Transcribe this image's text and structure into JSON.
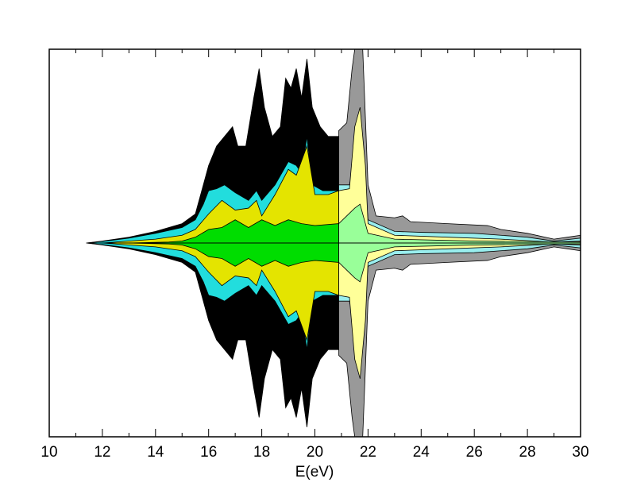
{
  "chart_data": {
    "type": "mirrored-area",
    "xlabel": "E(eV)",
    "xlim": [
      10,
      30
    ],
    "ylim": [
      -1,
      1
    ],
    "xticks": [
      10,
      12,
      14,
      16,
      18,
      20,
      22,
      24,
      26,
      28,
      30
    ],
    "xminorticks": [
      11,
      13,
      15,
      17,
      19,
      21,
      23,
      25,
      27,
      29
    ],
    "series": [
      {
        "color": "#000000",
        "x": [
          11.4,
          12,
          13,
          14,
          15,
          15.5,
          15.8,
          16,
          16.3,
          16.6,
          16.9,
          17.1,
          17.4,
          17.7,
          17.9,
          18.1,
          18.4,
          18.7,
          18.9,
          19.1,
          19.3,
          19.5,
          19.7,
          19.9,
          20.2,
          20.5,
          20.9
        ],
        "values": [
          0,
          0.01,
          0.03,
          0.06,
          0.1,
          0.15,
          0.3,
          0.4,
          0.5,
          0.55,
          0.6,
          0.5,
          0.5,
          0.75,
          0.9,
          0.7,
          0.55,
          0.6,
          0.85,
          0.8,
          0.9,
          0.75,
          0.95,
          0.7,
          0.6,
          0.55,
          0.55
        ]
      },
      {
        "color": "#999999",
        "x": [
          20.9,
          21.2,
          21.4,
          21.5,
          21.8,
          22,
          22.3,
          23,
          23.3,
          23.6,
          25,
          26.5,
          27,
          28,
          29,
          29.5,
          30
        ],
        "values": [
          0.58,
          0.62,
          0.9,
          1.0,
          1.0,
          0.3,
          0.14,
          0.13,
          0.14,
          0.11,
          0.1,
          0.09,
          0.07,
          0.05,
          0.02,
          0.03,
          0.04
        ]
      },
      {
        "color": "#22dddd",
        "x": [
          11.4,
          12,
          13,
          14,
          15,
          15.5,
          15.8,
          16,
          16.3,
          16.6,
          17,
          17.5,
          17.8,
          18,
          18.5,
          19,
          19.3,
          19.5,
          19.7,
          19.9,
          20.3,
          20.9
        ],
        "values": [
          0,
          0.008,
          0.025,
          0.05,
          0.08,
          0.12,
          0.2,
          0.27,
          0.28,
          0.3,
          0.26,
          0.22,
          0.27,
          0.22,
          0.3,
          0.42,
          0.4,
          0.36,
          0.55,
          0.3,
          0.27,
          0.27
        ]
      },
      {
        "color": "#99eeee",
        "x": [
          20.9,
          21.3,
          21.6,
          21.8,
          22,
          23,
          24,
          26,
          27,
          28,
          29,
          30
        ],
        "values": [
          0.3,
          0.3,
          0.5,
          0.45,
          0.12,
          0.06,
          0.055,
          0.05,
          0.04,
          0.03,
          0.01,
          0.025
        ]
      },
      {
        "color": "#e4e400",
        "x": [
          12,
          14,
          15,
          15.5,
          16,
          16.5,
          17,
          17.5,
          17.8,
          18,
          18.5,
          19,
          19.3,
          19.7,
          20,
          20.5,
          20.9
        ],
        "values": [
          0,
          0.02,
          0.04,
          0.07,
          0.15,
          0.22,
          0.17,
          0.18,
          0.22,
          0.14,
          0.25,
          0.38,
          0.35,
          0.5,
          0.25,
          0.25,
          0.27
        ]
      },
      {
        "color": "#ffff99",
        "x": [
          20.9,
          21.3,
          21.5,
          21.7,
          21.9,
          22,
          23,
          25,
          27,
          29,
          30
        ],
        "values": [
          0.27,
          0.28,
          0.6,
          0.7,
          0.4,
          0.1,
          0.04,
          0.03,
          0.02,
          0.005,
          0.01
        ]
      },
      {
        "color": "#00dd00",
        "x": [
          13,
          14.5,
          15,
          15.5,
          16,
          16.5,
          17,
          17.5,
          18,
          18.5,
          19,
          19.5,
          20,
          20.9
        ],
        "values": [
          0,
          0.005,
          0.01,
          0.03,
          0.07,
          0.08,
          0.12,
          0.08,
          0.12,
          0.09,
          0.12,
          0.1,
          0.09,
          0.1
        ]
      },
      {
        "color": "#99ff99",
        "x": [
          20.9,
          21.5,
          21.7,
          22,
          23,
          26,
          30
        ],
        "values": [
          0.1,
          0.18,
          0.2,
          0.05,
          0.02,
          0.01,
          0.005
        ]
      }
    ]
  }
}
